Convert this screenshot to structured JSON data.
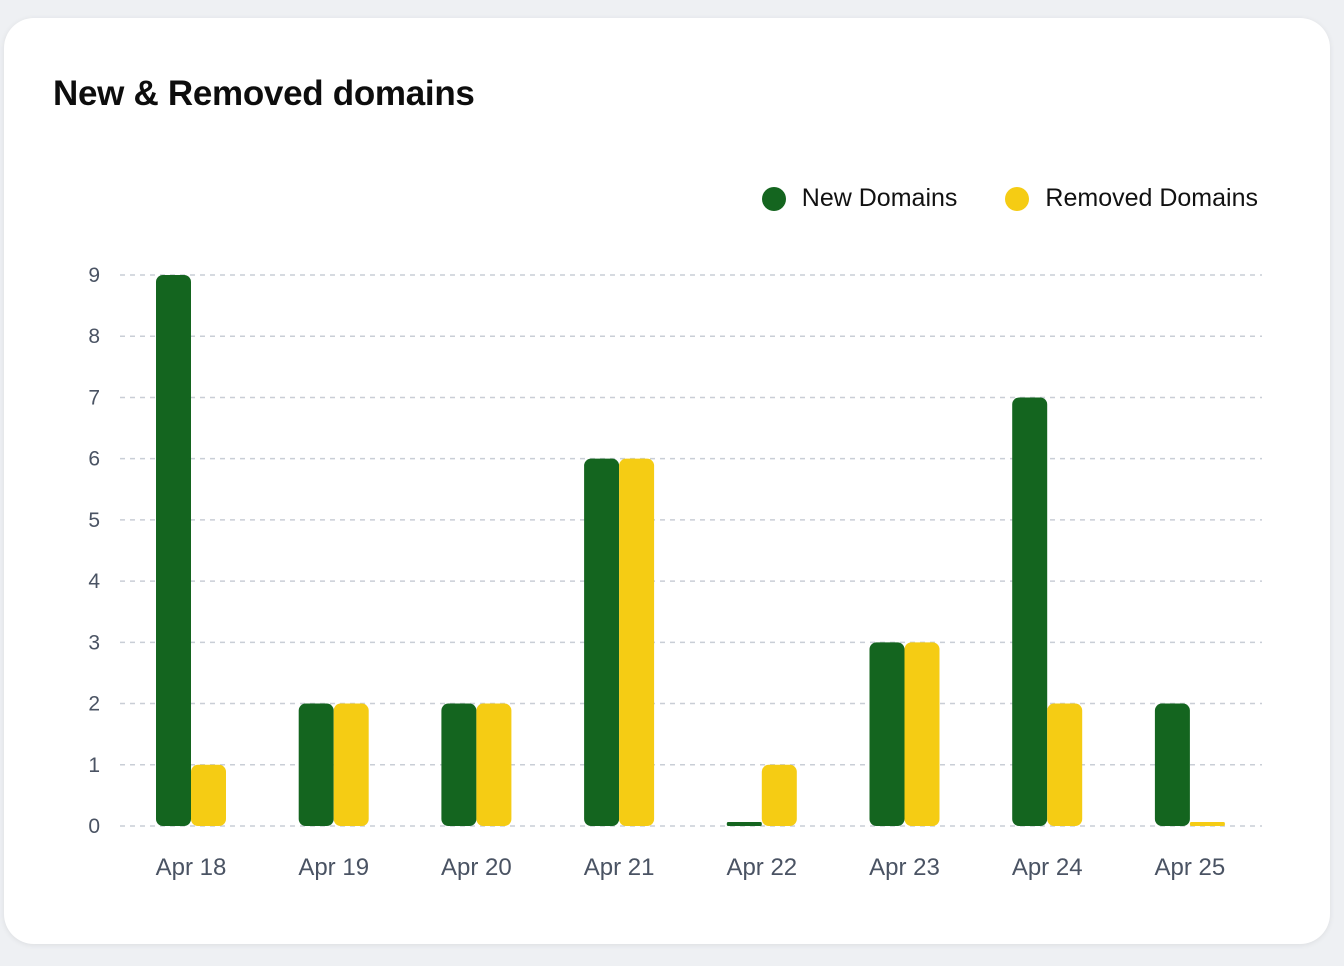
{
  "card": {
    "title": "New & Removed domains"
  },
  "chart_data": {
    "type": "bar",
    "title": "New & Removed domains",
    "categories": [
      "Apr 18",
      "Apr 19",
      "Apr 20",
      "Apr 21",
      "Apr 22",
      "Apr 23",
      "Apr 24",
      "Apr 25"
    ],
    "series": [
      {
        "name": "New Domains",
        "color": "#14651f",
        "values": [
          9,
          2,
          2,
          6,
          0,
          3,
          7,
          2
        ]
      },
      {
        "name": "Removed Domains",
        "color": "#f5cc14",
        "values": [
          1,
          2,
          2,
          6,
          1,
          3,
          2,
          0
        ]
      }
    ],
    "yticks": [
      "0",
      "1",
      "2",
      "3",
      "4",
      "5",
      "6",
      "7",
      "8",
      "9"
    ],
    "ylim": [
      0,
      9
    ],
    "grid": true,
    "legend_position": "top-right",
    "xlabel": "",
    "ylabel": ""
  }
}
